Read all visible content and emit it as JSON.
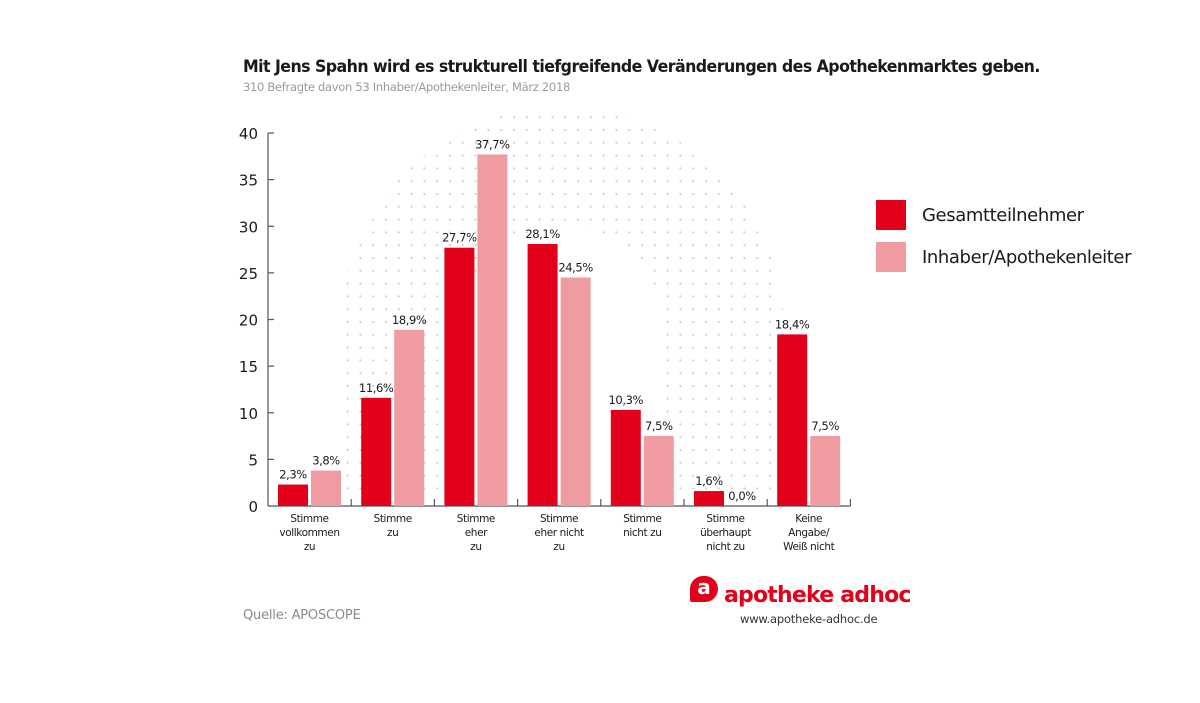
{
  "chart_data": {
    "type": "bar",
    "title": "Mit Jens Spahn wird es strukturell tiefgreifende Veränderungen des Apothekenmarktes geben.",
    "subtitle": "310 Befragte davon 53 Inhaber/Apothekenleiter, März 2018",
    "xlabel": "",
    "ylabel": "",
    "ylim": [
      0,
      40
    ],
    "yticks": [
      0,
      5,
      10,
      15,
      20,
      25,
      30,
      35,
      40
    ],
    "grid": false,
    "legend_position": "right",
    "categories": [
      [
        "Stimme",
        "vollkommen",
        "zu"
      ],
      [
        "Stimme",
        "zu"
      ],
      [
        "Stimme",
        "eher",
        "zu"
      ],
      [
        "Stimme",
        "eher nicht",
        "zu"
      ],
      [
        "Stimme",
        "nicht zu"
      ],
      [
        "Stimme",
        "überhaupt",
        "nicht zu"
      ],
      [
        "Keine",
        "Angabe/",
        "Weiß nicht"
      ]
    ],
    "series": [
      {
        "name": "Gesamtteilnehmer",
        "color": "#E2001A",
        "values": [
          2.3,
          11.6,
          27.7,
          28.1,
          10.3,
          1.6,
          18.4
        ],
        "labels": [
          "2,3%",
          "11,6%",
          "27,7%",
          "28,1%",
          "10,3%",
          "1,6%",
          "18,4%"
        ]
      },
      {
        "name": "Inhaber/Apothekenleiter",
        "color": "#F09AA2",
        "values": [
          3.8,
          18.9,
          37.7,
          24.5,
          7.5,
          0.0,
          7.5
        ],
        "labels": [
          "3,8%",
          "18,9%",
          "37,7%",
          "24,5%",
          "7,5%",
          "0,0%",
          "7,5%"
        ]
      }
    ]
  },
  "footer": {
    "source": "Quelle: APOSCOPE",
    "brand_mark": "a",
    "brand_name": "apotheke adhoc",
    "brand_url": "www.apotheke-adhoc.de"
  }
}
